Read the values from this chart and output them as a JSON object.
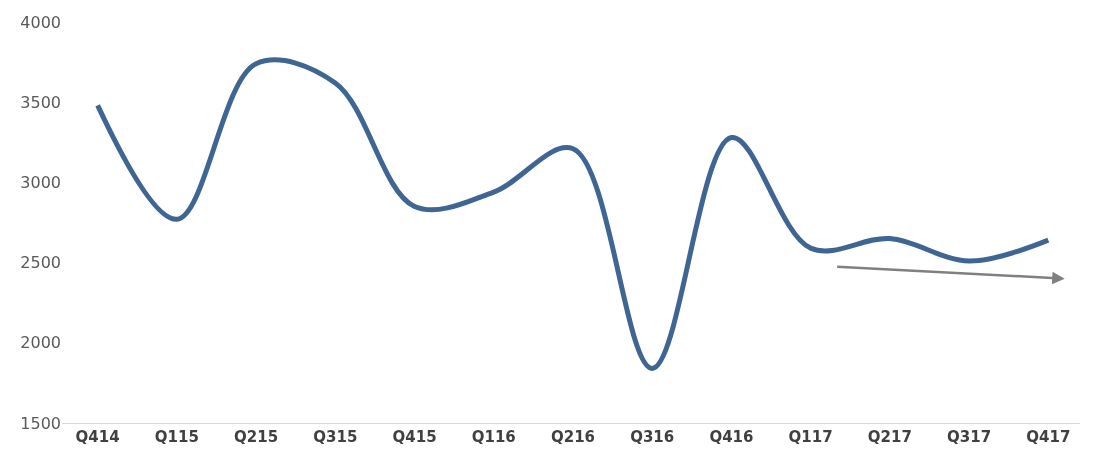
{
  "chart_data": {
    "type": "line",
    "categories": [
      "Q414",
      "Q115",
      "Q215",
      "Q315",
      "Q415",
      "Q116",
      "Q216",
      "Q316",
      "Q416",
      "Q117",
      "Q217",
      "Q317",
      "Q417"
    ],
    "series": [
      {
        "color": "#3f6593",
        "values": [
          3480,
          2770,
          3740,
          3620,
          2850,
          2940,
          3210,
          1840,
          3280,
          2590,
          2650,
          2510,
          2640
        ]
      }
    ],
    "ylim": [
      1500,
      4000
    ],
    "yticks": [
      1500,
      2000,
      2500,
      3000,
      3500,
      4000
    ],
    "grid": false,
    "legend": false,
    "marker": "none",
    "line_style": "solid"
  }
}
